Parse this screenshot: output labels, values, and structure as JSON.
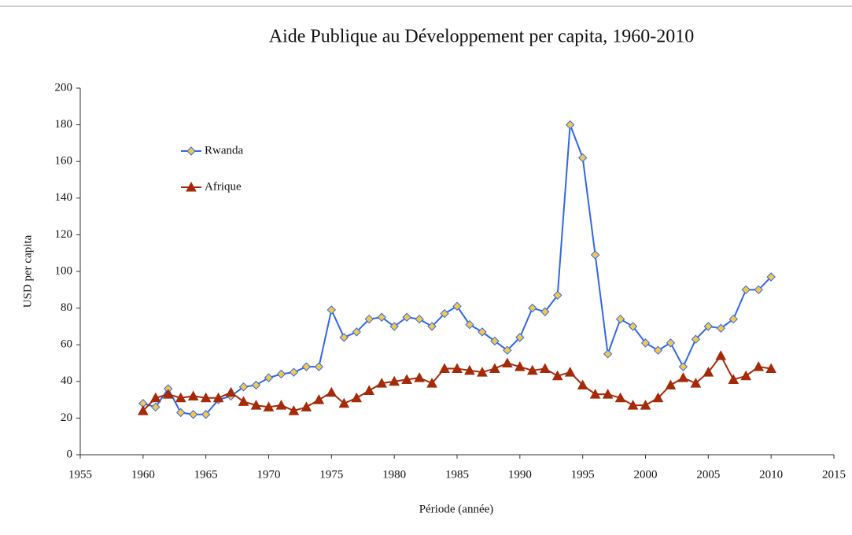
{
  "chart_data": {
    "type": "line",
    "title": "Aide Publique au Développement per capita, 1960-2010",
    "x_label": "Période (année)",
    "y_label": "USD per capita",
    "x": [
      1960,
      1961,
      1962,
      1963,
      1964,
      1965,
      1966,
      1967,
      1968,
      1969,
      1970,
      1971,
      1972,
      1973,
      1974,
      1975,
      1976,
      1977,
      1978,
      1979,
      1980,
      1981,
      1982,
      1983,
      1984,
      1985,
      1986,
      1987,
      1988,
      1989,
      1990,
      1991,
      1992,
      1993,
      1994,
      1995,
      1996,
      1997,
      1998,
      1999,
      2000,
      2001,
      2002,
      2003,
      2004,
      2005,
      2006,
      2007,
      2008,
      2009,
      2010
    ],
    "series": [
      {
        "name": "Rwanda",
        "color": "#3366e6",
        "marker": "diamond",
        "marker_color": "#f2c94c",
        "values": [
          28,
          26,
          36,
          23,
          22,
          22,
          30,
          32,
          37,
          38,
          42,
          44,
          45,
          48,
          48,
          79,
          64,
          67,
          74,
          75,
          70,
          75,
          74,
          70,
          77,
          81,
          71,
          67,
          62,
          57,
          64,
          80,
          78,
          87,
          180,
          162,
          109,
          55,
          74,
          70,
          61,
          57,
          61,
          48,
          63,
          70,
          69,
          74,
          90,
          90,
          97
        ]
      },
      {
        "name": "Afrique",
        "color": "#a52a0a",
        "marker": "triangle",
        "marker_color": "#a52a0a",
        "values": [
          24,
          31,
          33,
          31,
          32,
          31,
          31,
          34,
          29,
          27,
          26,
          27,
          24,
          26,
          30,
          34,
          28,
          31,
          35,
          39,
          40,
          41,
          42,
          39,
          47,
          47,
          46,
          45,
          47,
          50,
          48,
          46,
          47,
          43,
          45,
          38,
          33,
          33,
          31,
          27,
          27,
          31,
          38,
          42,
          39,
          45,
          54,
          41,
          43,
          48,
          47
        ]
      }
    ],
    "xlim": [
      1955,
      2015
    ],
    "xticks": [
      1955,
      1960,
      1965,
      1970,
      1975,
      1980,
      1985,
      1990,
      1995,
      2000,
      2005,
      2010,
      2015
    ],
    "ylim": [
      0,
      200
    ],
    "yticks": [
      0,
      20,
      40,
      60,
      80,
      100,
      120,
      140,
      160,
      180,
      200
    ],
    "grid": false,
    "legend": "upper left"
  }
}
